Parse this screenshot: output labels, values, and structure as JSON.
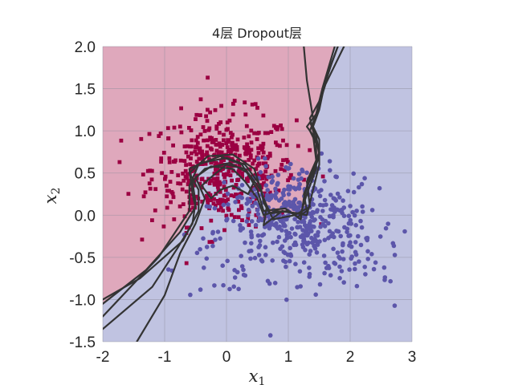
{
  "chart_data": {
    "type": "scatter",
    "title": "4层 Dropout层",
    "xlabel": {
      "base": "x",
      "sub": "1"
    },
    "ylabel": {
      "base": "x",
      "sub": "2"
    },
    "xlim": [
      -2,
      3
    ],
    "ylim": [
      -1.5,
      2.0
    ],
    "xticks": [
      -2,
      -1,
      0,
      1,
      2,
      3
    ],
    "xtick_labels": [
      "-2",
      "-1",
      "0",
      "1",
      "2",
      "3"
    ],
    "yticks": [
      -1.5,
      -1.0,
      -0.5,
      0.0,
      0.5,
      1.0,
      1.5,
      2.0
    ],
    "ytick_labels": [
      "-1.5",
      "-1.0",
      "-0.5",
      "0.0",
      "0.5",
      "1.0",
      "1.5",
      "2.0"
    ],
    "grid": true,
    "colors": {
      "class0_points": "#9b0042",
      "class1_points": "#5c56aa",
      "class0_region": "#dfa8bc",
      "class1_region": "#c0c3e1",
      "boundary": "#333333"
    },
    "series": [
      {
        "marker": "square",
        "color": "#9b0042",
        "count": 500,
        "center": [
          -0.05,
          0.55
        ],
        "spread": [
          0.58,
          0.33
        ]
      },
      {
        "marker": "circle",
        "color": "#5c56aa",
        "count": 500,
        "center": [
          1.1,
          -0.15
        ],
        "spread": [
          0.68,
          0.34
        ]
      }
    ],
    "decision_boundaries": [
      [
        [
          -2.0,
          -1.05
        ],
        [
          -1.3,
          -0.65
        ],
        [
          -0.75,
          -0.2
        ],
        [
          -0.5,
          0.1
        ],
        [
          -0.55,
          0.25
        ],
        [
          -0.6,
          0.55
        ],
        [
          -0.4,
          0.62
        ],
        [
          0.0,
          0.68
        ],
        [
          0.3,
          0.6
        ],
        [
          0.55,
          0.35
        ],
        [
          0.6,
          0.15
        ],
        [
          0.7,
          0.02
        ],
        [
          1.0,
          0.05
        ],
        [
          1.15,
          -0.02
        ],
        [
          1.3,
          0.05
        ],
        [
          1.25,
          0.25
        ],
        [
          1.4,
          0.5
        ],
        [
          1.5,
          0.7
        ],
        [
          1.45,
          0.95
        ],
        [
          1.35,
          1.1
        ],
        [
          1.45,
          1.2
        ],
        [
          1.55,
          1.5
        ],
        [
          1.75,
          2.0
        ]
      ],
      [
        [
          -2.0,
          -1.35
        ],
        [
          -1.2,
          -0.85
        ],
        [
          -0.8,
          -0.4
        ],
        [
          -0.55,
          -0.1
        ],
        [
          -0.5,
          0.15
        ],
        [
          -0.55,
          0.4
        ],
        [
          -0.35,
          0.55
        ],
        [
          0.05,
          0.62
        ],
        [
          0.35,
          0.5
        ],
        [
          0.55,
          0.3
        ],
        [
          0.65,
          0.1
        ],
        [
          0.6,
          -0.12
        ],
        [
          0.9,
          0.05
        ],
        [
          1.3,
          0.0
        ],
        [
          1.4,
          0.3
        ],
        [
          1.5,
          0.6
        ],
        [
          1.5,
          0.9
        ],
        [
          1.4,
          1.05
        ],
        [
          1.5,
          1.25
        ],
        [
          1.6,
          1.6
        ],
        [
          1.8,
          2.0
        ]
      ],
      [
        [
          -2.0,
          -1.0
        ],
        [
          -1.4,
          -0.75
        ],
        [
          -0.7,
          -0.3
        ],
        [
          -0.45,
          0.05
        ],
        [
          -0.45,
          0.3
        ],
        [
          -0.6,
          0.5
        ],
        [
          -0.3,
          0.7
        ],
        [
          0.1,
          0.72
        ],
        [
          0.45,
          0.55
        ],
        [
          0.6,
          0.2
        ],
        [
          0.75,
          -0.05
        ],
        [
          1.1,
          0.0
        ],
        [
          1.35,
          0.1
        ],
        [
          1.3,
          0.4
        ],
        [
          1.45,
          0.65
        ],
        [
          1.4,
          0.95
        ],
        [
          1.3,
          1.05
        ],
        [
          1.4,
          1.15
        ],
        [
          1.3,
          1.6
        ],
        [
          1.25,
          2.0
        ]
      ],
      [
        [
          -1.45,
          -1.5
        ],
        [
          -1.0,
          -0.95
        ],
        [
          -0.75,
          -0.45
        ],
        [
          -0.5,
          -0.1
        ],
        [
          -0.35,
          0.2
        ],
        [
          -0.5,
          0.45
        ],
        [
          -0.25,
          0.58
        ],
        [
          0.1,
          0.55
        ],
        [
          0.3,
          0.4
        ],
        [
          0.5,
          0.2
        ],
        [
          0.6,
          0.0
        ],
        [
          0.8,
          0.05
        ],
        [
          1.2,
          0.02
        ],
        [
          1.3,
          0.25
        ],
        [
          1.45,
          0.55
        ],
        [
          1.45,
          0.85
        ],
        [
          1.35,
          1.0
        ],
        [
          1.45,
          1.2
        ],
        [
          1.6,
          1.55
        ],
        [
          1.9,
          2.0
        ]
      ],
      [
        [
          -2.0,
          -1.2
        ],
        [
          -1.1,
          -0.5
        ],
        [
          -0.6,
          0.05
        ],
        [
          -0.6,
          0.35
        ],
        [
          -0.45,
          0.6
        ],
        [
          -0.1,
          0.7
        ],
        [
          0.25,
          0.6
        ],
        [
          0.5,
          0.3
        ],
        [
          0.6,
          0.05
        ],
        [
          0.95,
          0.08
        ],
        [
          1.2,
          -0.05
        ],
        [
          1.25,
          0.2
        ],
        [
          1.35,
          0.45
        ],
        [
          1.5,
          0.75
        ],
        [
          1.4,
          1.0
        ],
        [
          1.35,
          1.15
        ],
        [
          1.5,
          1.35
        ],
        [
          1.7,
          1.8
        ],
        [
          1.8,
          2.0
        ]
      ],
      [
        [
          -0.25,
          0.45
        ],
        [
          0.0,
          0.6
        ],
        [
          0.3,
          0.55
        ],
        [
          0.45,
          0.4
        ],
        [
          0.35,
          0.25
        ],
        [
          0.1,
          0.35
        ],
        [
          -0.1,
          0.3
        ],
        [
          -0.25,
          0.2
        ],
        [
          -0.4,
          0.35
        ],
        [
          -0.25,
          0.45
        ]
      ]
    ],
    "region_split": [
      [
        -2.0,
        -1.05
      ],
      [
        -1.3,
        -0.65
      ],
      [
        -0.75,
        -0.2
      ],
      [
        -0.5,
        0.1
      ],
      [
        -0.55,
        0.25
      ],
      [
        -0.6,
        0.55
      ],
      [
        -0.4,
        0.62
      ],
      [
        0.0,
        0.68
      ],
      [
        0.3,
        0.6
      ],
      [
        0.55,
        0.35
      ],
      [
        0.6,
        0.15
      ],
      [
        0.7,
        0.02
      ],
      [
        1.0,
        0.05
      ],
      [
        1.15,
        -0.02
      ],
      [
        1.3,
        0.05
      ],
      [
        1.25,
        0.25
      ],
      [
        1.4,
        0.5
      ],
      [
        1.5,
        0.7
      ],
      [
        1.45,
        0.95
      ],
      [
        1.35,
        1.1
      ],
      [
        1.45,
        1.2
      ],
      [
        1.55,
        1.5
      ],
      [
        1.75,
        2.0
      ]
    ]
  }
}
